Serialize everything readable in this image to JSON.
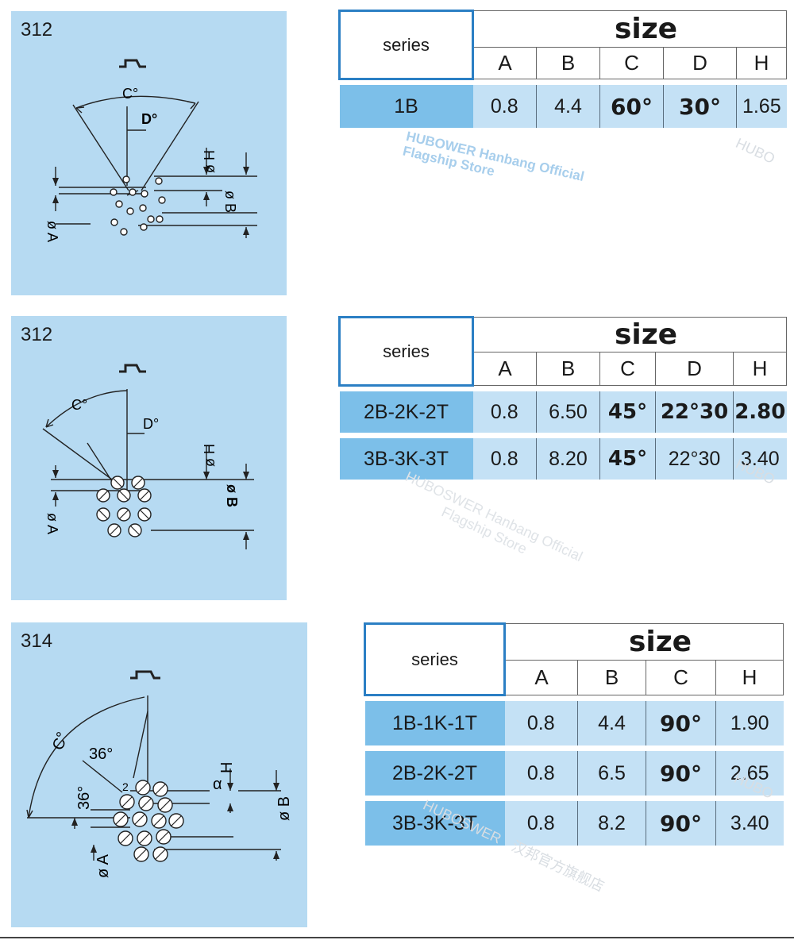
{
  "sections": [
    {
      "code": "312",
      "labels": {
        "c": "C°",
        "d": "D°",
        "h": "ø H",
        "b": "ø B",
        "a": "ø A"
      },
      "table": {
        "series_header": "series",
        "size_header": "size",
        "columns": [
          "A",
          "B",
          "C",
          "D",
          "H"
        ],
        "rows": [
          {
            "series": "1B",
            "values": [
              "0.8",
              "4.4",
              "60°",
              "30°",
              "1.65"
            ]
          }
        ]
      }
    },
    {
      "code": "312",
      "labels": {
        "c": "C°",
        "d": "D°",
        "h": "ø H",
        "b": "ø B",
        "a": "ø A"
      },
      "table": {
        "series_header": "series",
        "size_header": "size",
        "columns": [
          "A",
          "B",
          "C",
          "D",
          "H"
        ],
        "rows": [
          {
            "series": "2B-2K-2T",
            "values": [
              "0.8",
              "6.50",
              "45°",
              "22°30",
              "2.80"
            ]
          },
          {
            "series": "3B-3K-3T",
            "values": [
              "0.8",
              "8.20",
              "45°",
              "22°30",
              "3.40"
            ]
          }
        ]
      }
    },
    {
      "code": "314",
      "labels": {
        "c": "C°",
        "d36": "36°",
        "d36b": "36°",
        "h": "H",
        "alpha": "α",
        "b": "ø B",
        "a": "ø A",
        "pin2": "2"
      },
      "table": {
        "series_header": "series",
        "size_header": "size",
        "columns": [
          "A",
          "B",
          "C",
          "H"
        ],
        "rows": [
          {
            "series": "1B-1K-1T",
            "values": [
              "0.8",
              "4.4",
              "90°",
              "1.90"
            ]
          },
          {
            "series": "2B-2K-2T",
            "values": [
              "0.8",
              "6.5",
              "90°",
              "2.65"
            ]
          },
          {
            "series": "3B-3K-3T",
            "values": [
              "0.8",
              "8.2",
              "90°",
              "3.40"
            ]
          }
        ]
      }
    }
  ],
  "watermarks": {
    "store_line1": "HUBOWER Hanbang Official",
    "store_line2": "Flagship Store",
    "store_b_line1": "HUBOSWER Hanbang Official",
    "store_b_line2": "Flagship Store",
    "brand": "HUBOSWER",
    "brand_cn": "汉邦官方旗舰店",
    "brand_short": "HUBO"
  },
  "colors": {
    "panel": "#b6daf2",
    "row_series": "#7cbfe9",
    "row_values": "#c4e1f5",
    "header_border": "#2b7fc4"
  }
}
